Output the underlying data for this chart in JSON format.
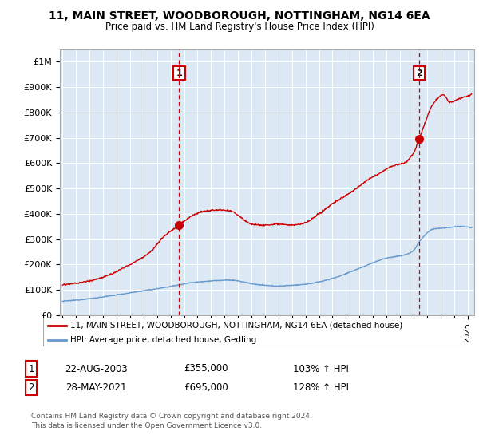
{
  "title": "11, MAIN STREET, WOODBOROUGH, NOTTINGHAM, NG14 6EA",
  "subtitle": "Price paid vs. HM Land Registry's House Price Index (HPI)",
  "yticks": [
    0,
    100000,
    200000,
    300000,
    400000,
    500000,
    600000,
    700000,
    800000,
    900000,
    1000000
  ],
  "ytick_labels": [
    "£0",
    "£100K",
    "£200K",
    "£300K",
    "£400K",
    "£500K",
    "£600K",
    "£700K",
    "£800K",
    "£900K",
    "£1M"
  ],
  "xlim_start": 1994.8,
  "xlim_end": 2025.5,
  "ylim": [
    0,
    1050000
  ],
  "sale1_date": 2003.64,
  "sale1_price": 355000,
  "sale1_label": "1",
  "sale2_date": 2021.41,
  "sale2_price": 695000,
  "sale2_label": "2",
  "red_line_color": "#cc0000",
  "blue_line_color": "#6699cc",
  "dashed_line_color": "#cc0000",
  "background_color": "#ffffff",
  "plot_bg_color": "#dce9f5",
  "grid_color": "#ffffff",
  "legend_label1": "11, MAIN STREET, WOODBOROUGH, NOTTINGHAM, NG14 6EA (detached house)",
  "legend_label2": "HPI: Average price, detached house, Gedling",
  "table_row1": [
    "1",
    "22-AUG-2003",
    "£355,000",
    "103% ↑ HPI"
  ],
  "table_row2": [
    "2",
    "28-MAY-2021",
    "£695,000",
    "128% ↑ HPI"
  ],
  "footer": "Contains HM Land Registry data © Crown copyright and database right 2024.\nThis data is licensed under the Open Government Licence v3.0."
}
